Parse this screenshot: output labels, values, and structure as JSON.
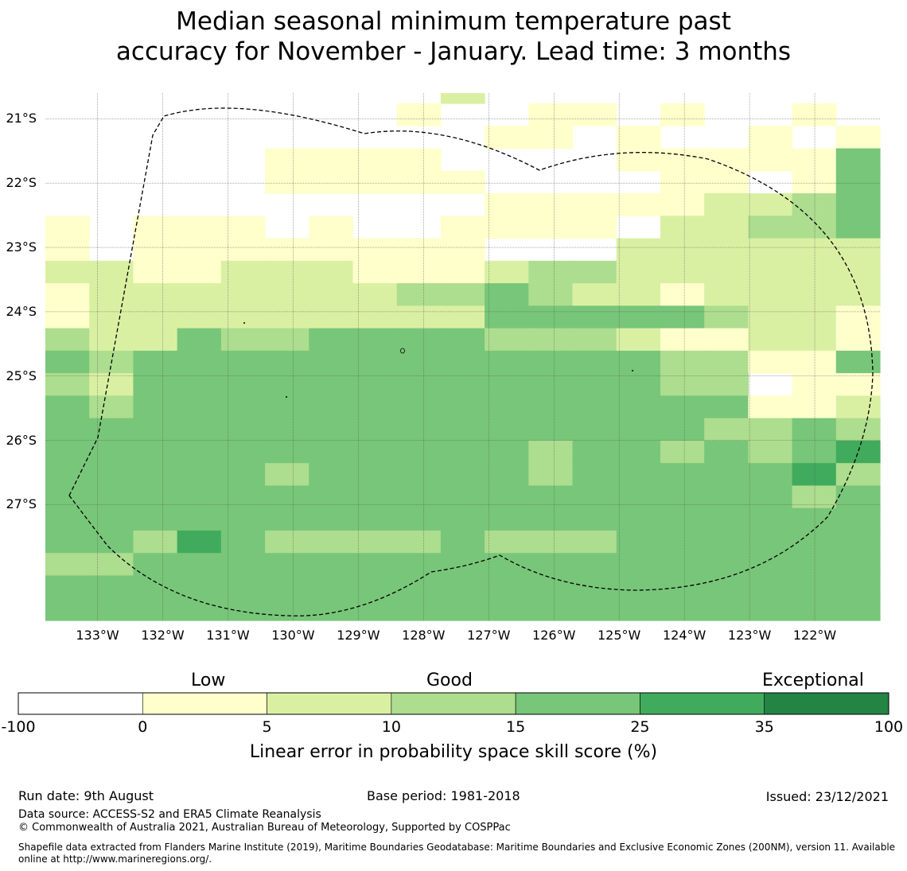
{
  "title": {
    "line1": "Median seasonal minimum temperature past",
    "line2": "accuracy for November - January. Lead time: 3 months"
  },
  "map": {
    "lon_range": [
      -133.8,
      -121.0
    ],
    "lat_range": [
      -28.8,
      -20.6
    ],
    "lat_ticks": [
      {
        "value": -21,
        "label": "21°S"
      },
      {
        "value": -22,
        "label": "22°S"
      },
      {
        "value": -23,
        "label": "23°S"
      },
      {
        "value": -24,
        "label": "24°S"
      },
      {
        "value": -25,
        "label": "25°S"
      },
      {
        "value": -26,
        "label": "26°S"
      },
      {
        "value": -27,
        "label": "27°S"
      }
    ],
    "lon_ticks": [
      {
        "value": -133,
        "label": "133°W"
      },
      {
        "value": -132,
        "label": "132°W"
      },
      {
        "value": -131,
        "label": "131°W"
      },
      {
        "value": -130,
        "label": "130°W"
      },
      {
        "value": -129,
        "label": "129°W"
      },
      {
        "value": -128,
        "label": "128°W"
      },
      {
        "value": -127,
        "label": "127°W"
      },
      {
        "value": -126,
        "label": "126°W"
      },
      {
        "value": -125,
        "label": "125°W"
      },
      {
        "value": -124,
        "label": "124°W"
      },
      {
        "value": -123,
        "label": "123°W"
      },
      {
        "value": -122,
        "label": "122°W"
      }
    ],
    "colors": {
      "0": "#ffffff",
      "1": "#ffffcc",
      "2": "#d9f0a3",
      "3": "#addd8e",
      "4": "#78c679",
      "5": "#41ab5d",
      "6": "#238443"
    },
    "category_grid": [
      "WWWWWWWWW2WWWWWWWWW",
      "WWWWWWWW1WW11W1WW1W",
      "WWWWWWWWWW11W1WW1W1",
      "WWWWW1111WWWW111114",
      "WWWWW11111WWWW11W14",
      "WWWWWWWWWW111112234",
      "1W111W1WW1111W22334",
      "1W11111111WWW222222",
      "2211222111233222222",
      "1222222233432212222",
      "1222222222444443221",
      "3224334444333211221",
      "4344444444444433114",
      "3244444444444433W11",
      "4344444444444444112",
      "4444444444444443343",
      "4444444444434434345",
      "4444434444434444453",
      "4444444444444444434",
      "4444444444444444444",
      "4435433334333444444",
      "3344444444444444444",
      "4444444444444444444",
      "4444444444444444444"
    ],
    "category_grid_note": ""
  },
  "colorbar": {
    "categories": [
      "Low",
      "Good",
      "Exceptional"
    ],
    "ticks": [
      "-100",
      "0",
      "5",
      "10",
      "15",
      "25",
      "35",
      "100"
    ],
    "colors": [
      "#ffffff",
      "#ffffcc",
      "#d9f0a3",
      "#addd8e",
      "#78c679",
      "#41ab5d",
      "#238443"
    ],
    "title": "Linear error in probability space skill score (%)"
  },
  "footer": {
    "run_date": "Run date: 9th August",
    "base_period": "Base period: 1981-2018",
    "issued": "Issued: 23/12/2021",
    "data_source": "Data source: ACCESS-S2 and ERA5 Climate Reanalysis",
    "copyright": "© Commonwealth of Australia 2021, Australian Bureau of Meteorology, Supported by COSPPac",
    "shapefile_line1": "Shapefile data extracted from Flanders Marine Institute (2019), Maritime Boundaries Geodatabase: Maritime Boundaries and Exclusive Economic Zones (200NM), version 11. Available",
    "shapefile_line2": "online at http://www.marineregions.org/."
  }
}
